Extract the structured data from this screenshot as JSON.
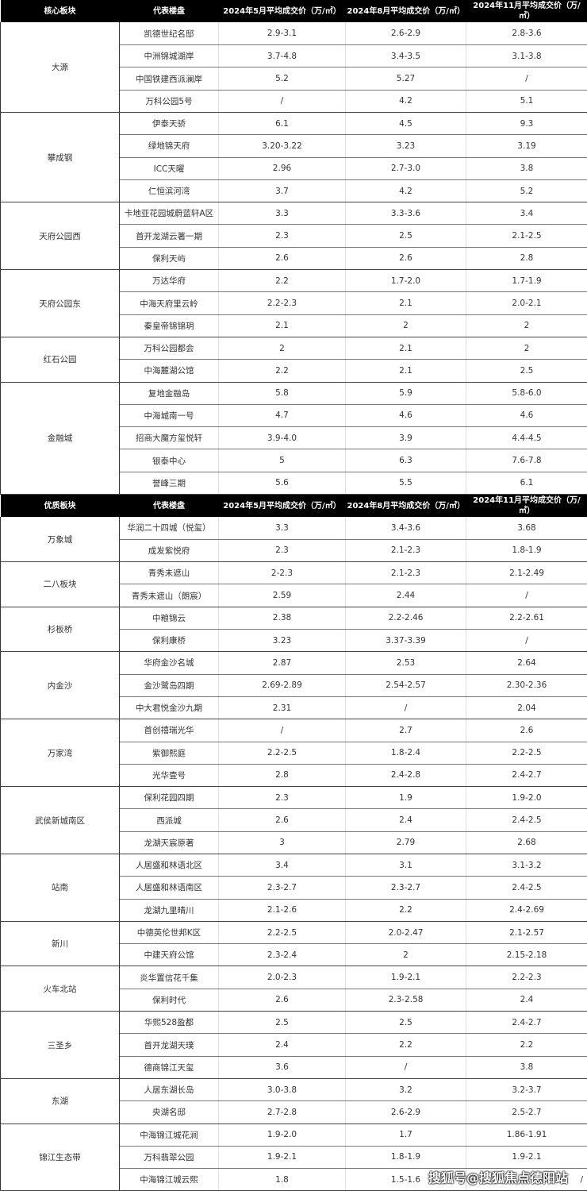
{
  "sections": [
    {
      "headers": [
        "核心板块",
        "代表楼盘",
        "2024年5月平均成交价（万/㎡）",
        "2024年8月平均成交价（万/㎡）",
        "2024年11月平均成交价（万/㎡）"
      ],
      "groups": [
        {
          "area": "大源",
          "rows": [
            [
              "凯德世纪名邸",
              "2.9-3.1",
              "2.6-2.9",
              "2.8-3.6"
            ],
            [
              "中洲锦城湖岸",
              "3.7-4.8",
              "3.4-3.5",
              "3.1-3.8"
            ],
            [
              "中国铁建西派澜岸",
              "5.2",
              "5.27",
              "/"
            ],
            [
              "万科公园5号",
              "/",
              "4.2",
              "5.1"
            ]
          ]
        },
        {
          "area": "攀成钢",
          "rows": [
            [
              "伊泰天骄",
              "6.1",
              "4.5",
              "9.3"
            ],
            [
              "绿地锦天府",
              "3.20-3.22",
              "3.23",
              "3.19"
            ],
            [
              "ICC天曜",
              "2.96",
              "2.7-3.0",
              "3.8"
            ],
            [
              "仁恒滨河湾",
              "3.7",
              "4.2",
              "5.2"
            ]
          ]
        },
        {
          "area": "天府公园西",
          "rows": [
            [
              "卡地亚花园城蔚蓝轩A区",
              "3.3",
              "3.3-3.6",
              "3.4"
            ],
            [
              "首开龙湖云著一期",
              "2.3",
              "2.5",
              "2.1-2.5"
            ],
            [
              "保利天屿",
              "2.6",
              "2.6",
              "2.8"
            ]
          ]
        },
        {
          "area": "天府公园东",
          "rows": [
            [
              "万达华府",
              "2.2",
              "1.7-2.0",
              "1.7-1.9"
            ],
            [
              "中海天府里云岭",
              "2.2-2.3",
              "2.1",
              "2.0-2.1"
            ],
            [
              "秦皇帝锦锦玥",
              "2.1",
              "2",
              "2"
            ]
          ]
        },
        {
          "area": "红石公园",
          "rows": [
            [
              "万科公园都会",
              "2",
              "2.1",
              "2"
            ],
            [
              "中海麓湖公馆",
              "2.2",
              "2.1",
              "2.5"
            ]
          ]
        },
        {
          "area": "金融城",
          "rows": [
            [
              "复地金融岛",
              "5.8",
              "5.9",
              "5.8-6.0"
            ],
            [
              "中海城南一号",
              "4.7",
              "4.6",
              "4.6"
            ],
            [
              "招商大魔方玺悦轩",
              "3.9-4.0",
              "3.9",
              "4.4-4.5"
            ],
            [
              "银泰中心",
              "5",
              "6.3",
              "7.6-7.8"
            ],
            [
              "誉峰三期",
              "5.6",
              "5.5",
              "6.1"
            ]
          ]
        }
      ]
    },
    {
      "headers": [
        "优质板块",
        "代表楼盘",
        "2024年5月平均成交价（万/㎡）",
        "2024年8月平均成交价（万/㎡）",
        "2024年11月平均成交价（万/㎡）"
      ],
      "groups": [
        {
          "area": "万象城",
          "rows": [
            [
              "华润二十四城（悦玺）",
              "3.3",
              "3.4-3.6",
              "3.68"
            ],
            [
              "成发紫悦府",
              "2.3",
              "2.1-2.3",
              "1.8-1.9"
            ]
          ]
        },
        {
          "area": "二八板块",
          "rows": [
            [
              "青秀未遮山",
              "2-2.3",
              "2.1-2.3",
              "2.1-2.49"
            ],
            [
              "青秀未遮山（朗宸）",
              "2.59",
              "2.44",
              "/"
            ]
          ]
        },
        {
          "area": "杉板桥",
          "rows": [
            [
              "中粮锦云",
              "2.38",
              "2.2-2.46",
              "2.2-2.61"
            ],
            [
              "保利康桥",
              "3.23",
              "3.37-3.39",
              "/"
            ]
          ]
        },
        {
          "area": "内金沙",
          "rows": [
            [
              "华府金沙名城",
              "2.87",
              "2.53",
              "2.64"
            ],
            [
              "金沙鹭岛四期",
              "2.69-2.89",
              "2.54-2.57",
              "2.30-2.36"
            ],
            [
              "中大君悦金沙九期",
              "2.31",
              "/",
              "2.04"
            ]
          ]
        },
        {
          "area": "万家湾",
          "rows": [
            [
              "首创禧瑞光华",
              "/",
              "2.7",
              "2.6"
            ],
            [
              "紫御熙庭",
              "2.2-2.5",
              "1.8-2.4",
              "2.2-2.5"
            ],
            [
              "光华壹号",
              "2.8",
              "2.4-2.8",
              "2.4-2.7"
            ]
          ]
        },
        {
          "area": "武侯新城南区",
          "rows": [
            [
              "保利花园四期",
              "2.3",
              "1.9",
              "1.9-2.0"
            ],
            [
              "西派城",
              "2.6",
              "2.4",
              "2.4-2.5"
            ],
            [
              "龙湖天宸原著",
              "3",
              "2.79",
              "2.68"
            ]
          ]
        },
        {
          "area": "站南",
          "rows": [
            [
              "人居盛和林语北区",
              "3.4",
              "3.1",
              "3.1-3.2"
            ],
            [
              "人居盛和林语南区",
              "2.3-2.7",
              "2.3-2.7",
              "2.4-2.5"
            ],
            [
              "龙湖九里晴川",
              "2.1-2.6",
              "2.2",
              "2.4-2.69"
            ]
          ]
        },
        {
          "area": "新川",
          "rows": [
            [
              "中德英伦世邦K区",
              "2.2-2.5",
              "2.0-2.47",
              "2.1-2.57"
            ],
            [
              "中建天府公馆",
              "2.3-2.4",
              "2",
              "2.15-2.18"
            ]
          ]
        },
        {
          "area": "火车北站",
          "rows": [
            [
              "炎华置信花千集",
              "2.0-2.3",
              "1.9-2.1",
              "2.2-2.3"
            ],
            [
              "保利时代",
              "2.6",
              "2.3-2.58",
              "2.4"
            ]
          ]
        },
        {
          "area": "三圣乡",
          "rows": [
            [
              "华熙528盈都",
              "2.5",
              "2.5",
              "2.4-2.7"
            ],
            [
              "首开龙湖天璞",
              "2.4",
              "2.2",
              "2.2"
            ],
            [
              "德商锦江天玺",
              "3.6",
              "/",
              "3.8"
            ]
          ]
        },
        {
          "area": "东湖",
          "rows": [
            [
              "人居东湖长岛",
              "3.0-3.8",
              "3.2",
              "3.2-3.7"
            ],
            [
              "央湖名邸",
              "2.7-2.8",
              "2.6-2.9",
              "2.5-2.7"
            ]
          ]
        },
        {
          "area": "锦江生态带",
          "rows": [
            [
              "中海锦江城花涧",
              "1.9-2.0",
              "1.7",
              "1.86-1.91"
            ],
            [
              "万科翡翠公园",
              "1.9-2.1",
              "1.8-1.9",
              "1.9-2.1"
            ],
            [
              "中海锦江城云熙",
              "1.8",
              "1.5-1.6",
              "/"
            ]
          ]
        }
      ]
    }
  ],
  "watermark": "搜狐号@搜狐焦点德阳站"
}
